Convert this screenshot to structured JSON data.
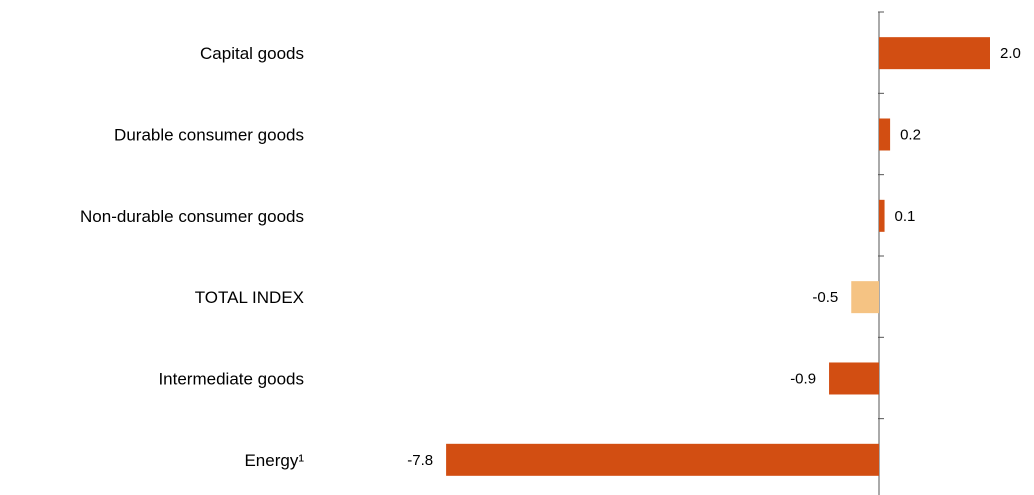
{
  "chart_data": {
    "type": "bar",
    "orientation": "horizontal",
    "title": "",
    "xlabel": "",
    "ylabel": "",
    "categories": [
      "Capital goods",
      "Durable consumer goods",
      "Non-durable consumer goods",
      "TOTAL INDEX",
      "Intermediate goods",
      "Energy¹"
    ],
    "values": [
      2.0,
      0.2,
      0.1,
      -0.5,
      -0.9,
      -7.8
    ],
    "value_labels": [
      "2.0",
      "0.2",
      "0.1",
      "-0.5",
      "-0.9",
      "-7.8"
    ],
    "colors": [
      "#d24e12",
      "#d24e12",
      "#d24e12",
      "#f5c383",
      "#d24e12",
      "#d24e12"
    ],
    "grid": false,
    "legend": "none"
  }
}
